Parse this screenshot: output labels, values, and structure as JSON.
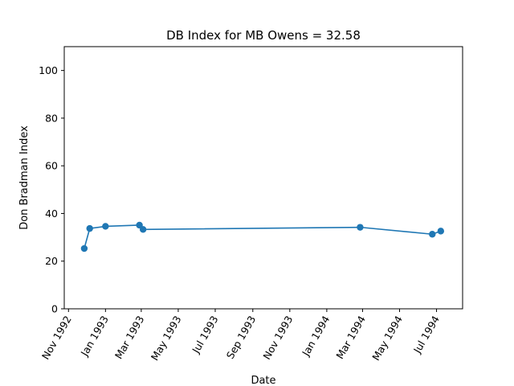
{
  "chart_data": {
    "type": "line",
    "title": "DB Index for MB Owens = 32.58",
    "xlabel": "Date",
    "ylabel": "Don Bradman Index",
    "xlim": [
      "1992-10-25",
      "1994-08-13"
    ],
    "ylim": [
      0,
      110
    ],
    "x_ticks": [
      {
        "date": "1992-11-01",
        "label": "Nov 1992"
      },
      {
        "date": "1993-01-01",
        "label": "Jan 1993"
      },
      {
        "date": "1993-03-01",
        "label": "Mar 1993"
      },
      {
        "date": "1993-05-01",
        "label": "May 1993"
      },
      {
        "date": "1993-07-01",
        "label": "Jul 1993"
      },
      {
        "date": "1993-09-01",
        "label": "Sep 1993"
      },
      {
        "date": "1993-11-01",
        "label": "Nov 1993"
      },
      {
        "date": "1994-01-01",
        "label": "Jan 1994"
      },
      {
        "date": "1994-03-01",
        "label": "Mar 1994"
      },
      {
        "date": "1994-05-01",
        "label": "May 1994"
      },
      {
        "date": "1994-07-01",
        "label": "Jul 1994"
      }
    ],
    "y_ticks": [
      0,
      20,
      40,
      60,
      80,
      100
    ],
    "grid": false,
    "series": [
      {
        "color": "#1f77b4",
        "points": [
          {
            "x": "1992-11-27",
            "y": 25.3
          },
          {
            "x": "1992-12-06",
            "y": 33.7
          },
          {
            "x": "1993-01-01",
            "y": 34.6
          },
          {
            "x": "1993-02-26",
            "y": 35.1
          },
          {
            "x": "1993-03-04",
            "y": 33.3
          },
          {
            "x": "1994-02-25",
            "y": 34.2
          },
          {
            "x": "1994-06-24",
            "y": 31.3
          },
          {
            "x": "1994-07-08",
            "y": 32.6
          }
        ]
      }
    ]
  }
}
